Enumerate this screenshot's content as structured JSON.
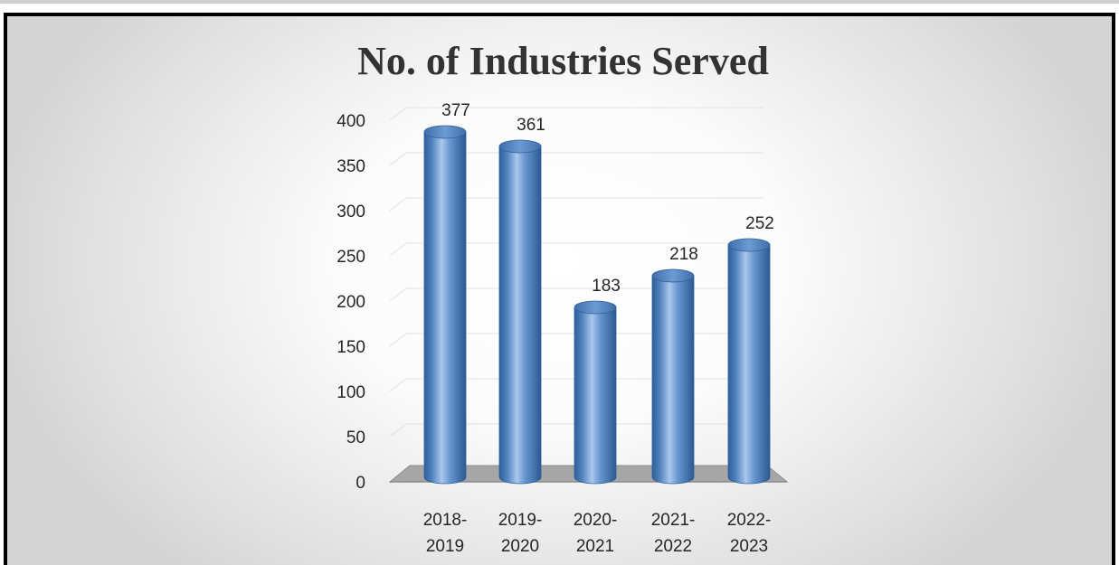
{
  "chart_data": {
    "type": "bar",
    "title": "No. of Industries Served",
    "categories": [
      "2018-2019",
      "2019-2020",
      "2020-2021",
      "2021-2022",
      "2022-2023"
    ],
    "category_lines": [
      [
        "2018-",
        "2019"
      ],
      [
        "2019-",
        "2020"
      ],
      [
        "2020-",
        "2021"
      ],
      [
        "2021-",
        "2022"
      ],
      [
        "2022-",
        "2023"
      ]
    ],
    "values": [
      377,
      361,
      183,
      218,
      252
    ],
    "data_labels": [
      "377",
      "361",
      "183",
      "218",
      "252"
    ],
    "ylim": [
      0,
      400
    ],
    "yticks": [
      0,
      50,
      100,
      150,
      200,
      250,
      300,
      350,
      400
    ],
    "xlabel": "",
    "ylabel": "",
    "grid": true,
    "legend": "none",
    "style": "3d-cylinder",
    "bar_color": "#4f81bd",
    "floor_color": "#a6a6a6"
  }
}
